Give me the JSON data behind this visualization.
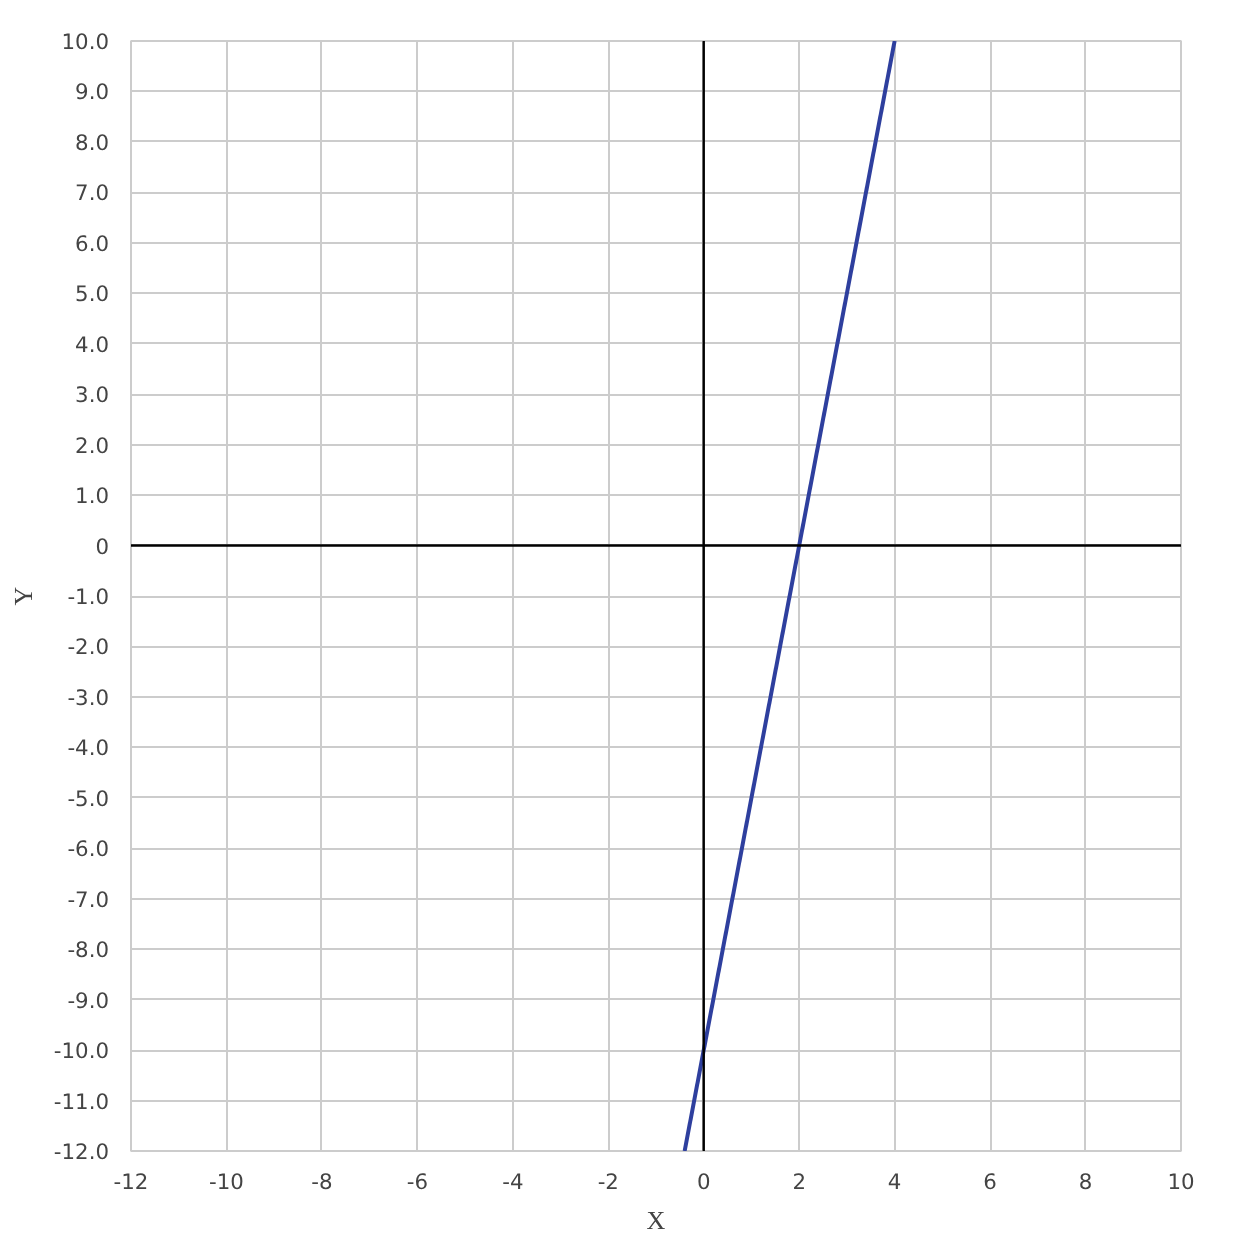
{
  "chart_data": {
    "type": "line",
    "xlabel": "X",
    "ylabel": "Y",
    "x": [
      -0.4,
      4
    ],
    "series": [
      {
        "color": "#2e3f9e",
        "values": [
          -12,
          10
        ]
      }
    ],
    "xlim": [
      -12,
      10
    ],
    "ylim": [
      -12,
      10
    ],
    "xticks": [
      -12,
      -10,
      -8,
      -6,
      -4,
      -2,
      0,
      2,
      4,
      6,
      8,
      10
    ],
    "yticks": [
      {
        "value": -12,
        "label": "-12.0"
      },
      {
        "value": -11,
        "label": "-11.0"
      },
      {
        "value": -10,
        "label": "-10.0"
      },
      {
        "value": -9,
        "label": "-9.0"
      },
      {
        "value": -8,
        "label": "-8.0"
      },
      {
        "value": -7,
        "label": "-7.0"
      },
      {
        "value": -6,
        "label": "-6.0"
      },
      {
        "value": -5,
        "label": "-5.0"
      },
      {
        "value": -4,
        "label": "-4.0"
      },
      {
        "value": -3,
        "label": "-3.0"
      },
      {
        "value": -2,
        "label": "-2.0"
      },
      {
        "value": -1,
        "label": "-1.0"
      },
      0,
      {
        "value": 1,
        "label": "1.0"
      },
      {
        "value": 2,
        "label": "2.0"
      },
      {
        "value": 3,
        "label": "3.0"
      },
      {
        "value": 4,
        "label": "4.0"
      },
      {
        "value": 5,
        "label": "5.0"
      },
      {
        "value": 6,
        "label": "6.0"
      },
      {
        "value": 7,
        "label": "7.0"
      },
      {
        "value": 8,
        "label": "8.0"
      },
      {
        "value": 9,
        "label": "9.0"
      },
      {
        "value": 10,
        "label": "10.0"
      }
    ],
    "grid": true,
    "marker": "none",
    "line_style": "solid"
  }
}
